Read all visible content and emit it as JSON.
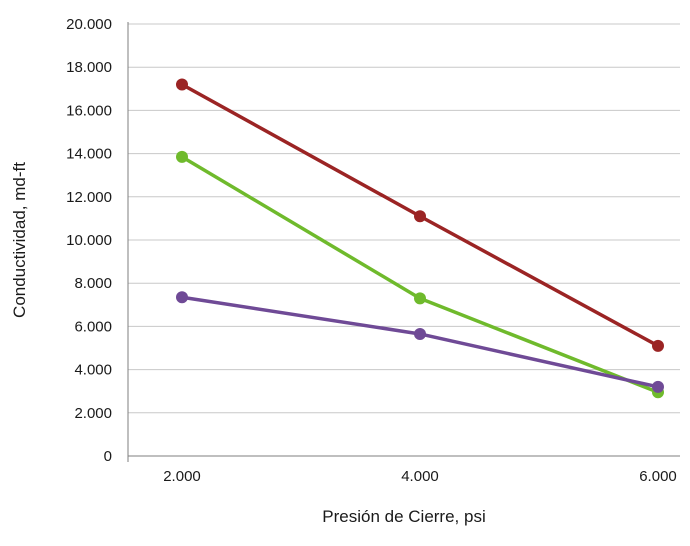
{
  "chart_data": {
    "type": "line",
    "title": "",
    "xlabel": "Presión de Cierre, psi",
    "ylabel": "Conductividad, md-ft",
    "x": [
      2000,
      4000,
      6000
    ],
    "x_tick_labels": [
      "2.000",
      "4.000",
      "6.000"
    ],
    "ylim": [
      0,
      20000
    ],
    "y_ticks": [
      0,
      2000,
      4000,
      6000,
      8000,
      10000,
      12000,
      14000,
      16000,
      18000,
      20000
    ],
    "y_tick_labels": [
      "0",
      "2.000",
      "4.000",
      "6.000",
      "8.000",
      "10.000",
      "12.000",
      "14.000",
      "16.000",
      "18.000",
      "20.000"
    ],
    "grid": "horizontal",
    "legend": "none",
    "series": [
      {
        "color": "#9b2424",
        "values": [
          17200,
          11100,
          5100
        ]
      },
      {
        "color": "#6fba2c",
        "values": [
          13850,
          7300,
          2950
        ]
      },
      {
        "color": "#6f4a96",
        "values": [
          7350,
          5650,
          3200
        ]
      }
    ]
  }
}
